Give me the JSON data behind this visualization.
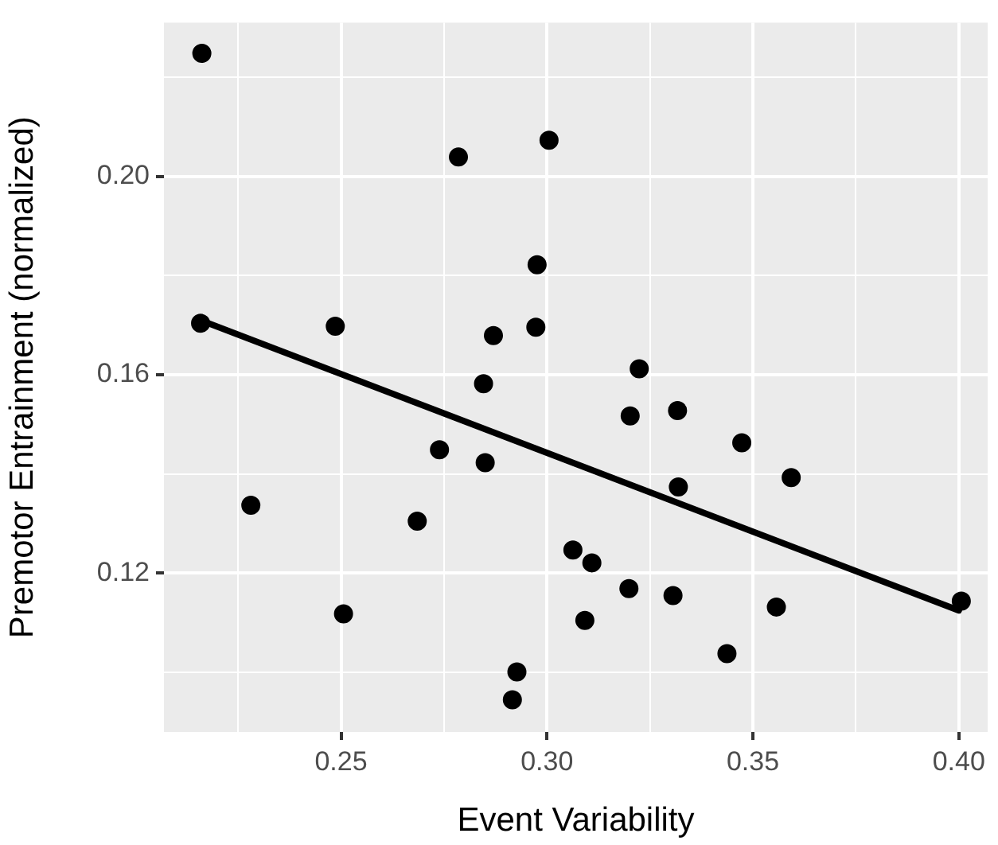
{
  "chart_data": {
    "type": "scatter",
    "xlabel": "Event Variability",
    "ylabel": "Premotor Entrainment (normalized)",
    "xlim": [
      0.207,
      0.407
    ],
    "ylim": [
      0.088,
      0.231
    ],
    "xticks": [
      {
        "value": 0.225,
        "label": null
      },
      0.25,
      {
        "value": 0.275,
        "label": null
      },
      {
        "value": 0.3,
        "label": "0.30"
      },
      {
        "value": 0.325,
        "label": null
      },
      0.35,
      {
        "value": 0.375,
        "label": null
      },
      {
        "value": 0.4,
        "label": "0.40"
      }
    ],
    "yticks": [
      {
        "value": 0.1,
        "label": null
      },
      0.12,
      {
        "value": 0.14,
        "label": null
      },
      0.16,
      {
        "value": 0.18,
        "label": null
      },
      {
        "value": 0.2,
        "label": "0.20"
      },
      {
        "value": 0.22,
        "label": null
      }
    ],
    "grid": true,
    "legend": false,
    "series": [
      {
        "type": "scatter",
        "color": "#000000",
        "marker": "circle",
        "x": [
          0.2162,
          0.2159,
          0.2281,
          0.2486,
          0.2506,
          0.2685,
          0.2739,
          0.2785,
          0.2846,
          0.285,
          0.287,
          0.2927,
          0.2916,
          0.2976,
          0.2973,
          0.3005,
          0.3063,
          0.3109,
          0.3092,
          0.3199,
          0.3202,
          0.3224,
          0.3306,
          0.3317,
          0.3319,
          0.3437,
          0.3473,
          0.3557,
          0.3593,
          0.4006
        ],
        "values": [
          0.2248,
          0.1704,
          0.1337,
          0.1698,
          0.1118,
          0.1305,
          0.1449,
          0.2039,
          0.1582,
          0.1423,
          0.1679,
          0.1001,
          0.0945,
          0.1822,
          0.1696,
          0.2073,
          0.1247,
          0.1221,
          0.1105,
          0.1169,
          0.1517,
          0.1612,
          0.1155,
          0.1528,
          0.1374,
          0.1038,
          0.1463,
          0.1132,
          0.1393,
          0.1144
        ]
      },
      {
        "type": "line",
        "color": "#000000",
        "marker": "none",
        "x": [
          0.2159,
          0.4
        ],
        "values": [
          0.171,
          0.1125
        ]
      }
    ]
  }
}
